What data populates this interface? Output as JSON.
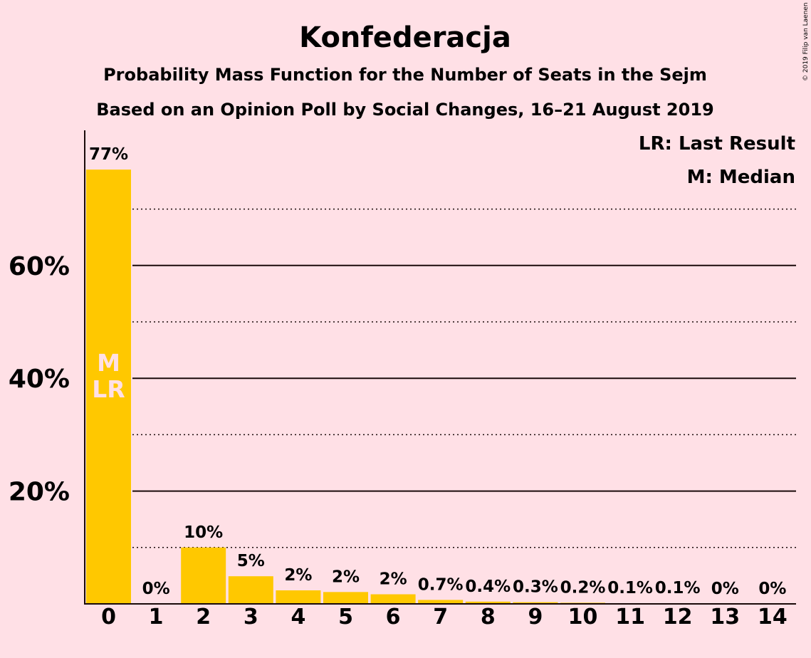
{
  "chart_data": {
    "type": "bar",
    "title": "Konfederacja",
    "subtitle": "Probability Mass Function for the Number of Seats in the Sejm",
    "subtitle2": "Based on an Opinion Poll by Social Changes, 16–21 August 2019",
    "copyright": "© 2019 Filip van Laenen",
    "legend": [
      "LR: Last Result",
      "M: Median"
    ],
    "legend_position": "top-right",
    "categories": [
      "0",
      "1",
      "2",
      "3",
      "4",
      "5",
      "6",
      "7",
      "8",
      "9",
      "10",
      "11",
      "12",
      "13",
      "14"
    ],
    "values": [
      77,
      0,
      10,
      4.9,
      2.4,
      2.1,
      1.7,
      0.7,
      0.4,
      0.3,
      0.2,
      0.1,
      0.1,
      0,
      0
    ],
    "data_labels": [
      "77%",
      "0%",
      "10%",
      "5%",
      "2%",
      "2%",
      "2%",
      "0.7%",
      "0.4%",
      "0.3%",
      "0.2%",
      "0.1%",
      "0.1%",
      "0%",
      "0%"
    ],
    "bar_annotations": [
      {
        "category": "0",
        "lines": [
          "M",
          "LR"
        ]
      }
    ],
    "ylim": [
      0,
      84
    ],
    "yticks": [
      20,
      40,
      60
    ],
    "ytick_labels": [
      "20%",
      "40%",
      "60%"
    ],
    "minor_gridlines": [
      10,
      30,
      50,
      70
    ],
    "grid": true,
    "xlabel": "",
    "ylabel": "",
    "colors": {
      "bar": "#FFC800",
      "background": "#FFE0E6",
      "text": "#1a0a0a",
      "annotation": "#FFE0E6"
    }
  }
}
